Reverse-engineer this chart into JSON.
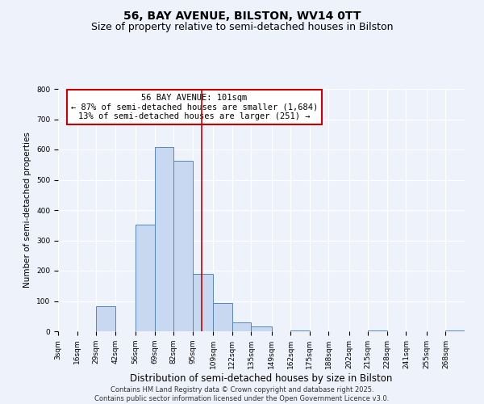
{
  "title": "56, BAY AVENUE, BILSTON, WV14 0TT",
  "subtitle": "Size of property relative to semi-detached houses in Bilston",
  "xlabel": "Distribution of semi-detached houses by size in Bilston",
  "ylabel": "Number of semi-detached properties",
  "bin_labels": [
    "3sqm",
    "16sqm",
    "29sqm",
    "42sqm",
    "56sqm",
    "69sqm",
    "82sqm",
    "95sqm",
    "109sqm",
    "122sqm",
    "135sqm",
    "149sqm",
    "162sqm",
    "175sqm",
    "188sqm",
    "202sqm",
    "215sqm",
    "228sqm",
    "241sqm",
    "255sqm",
    "268sqm"
  ],
  "bin_edges": [
    3,
    16,
    29,
    42,
    56,
    69,
    82,
    95,
    109,
    122,
    135,
    149,
    162,
    175,
    188,
    202,
    215,
    228,
    241,
    255,
    268,
    281
  ],
  "counts": [
    0,
    0,
    83,
    0,
    352,
    607,
    562,
    190,
    93,
    29,
    16,
    0,
    3,
    0,
    0,
    0,
    4,
    0,
    0,
    0,
    2
  ],
  "bar_facecolor": "#c8d8f0",
  "bar_edgecolor": "#5588bb",
  "property_line_x": 101,
  "property_line_color": "#cc0000",
  "annotation_title": "56 BAY AVENUE: 101sqm",
  "annotation_line1": "← 87% of semi-detached houses are smaller (1,684)",
  "annotation_line2": "13% of semi-detached houses are larger (251) →",
  "annotation_box_edgecolor": "#cc0000",
  "annotation_box_facecolor": "#ffffff",
  "ylim": [
    0,
    800
  ],
  "yticks": [
    0,
    100,
    200,
    300,
    400,
    500,
    600,
    700,
    800
  ],
  "background_color": "#eef2fb",
  "footer_line1": "Contains HM Land Registry data © Crown copyright and database right 2025.",
  "footer_line2": "Contains public sector information licensed under the Open Government Licence v3.0.",
  "title_fontsize": 10,
  "subtitle_fontsize": 9,
  "xlabel_fontsize": 8.5,
  "ylabel_fontsize": 7.5,
  "tick_fontsize": 6.5,
  "annotation_fontsize": 7.5,
  "footer_fontsize": 6.0
}
